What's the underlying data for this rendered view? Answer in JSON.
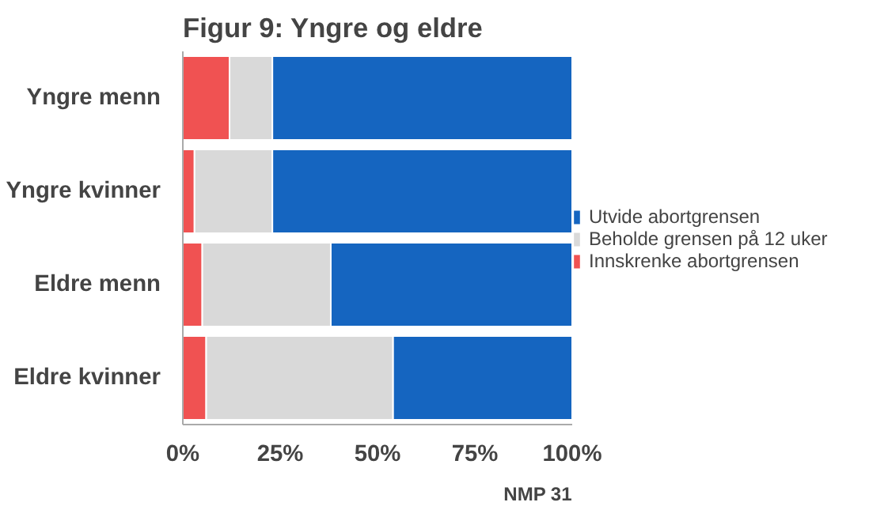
{
  "chart_data": {
    "type": "bar",
    "orientation": "horizontal",
    "stacked": true,
    "title": "Figur 9: Yngre og eldre",
    "categories": [
      "Yngre menn",
      "Yngre kvinner",
      "Eldre menn",
      "Eldre kvinner"
    ],
    "series": [
      {
        "name": "Innskrenke abortgrensen",
        "color": "#f05252",
        "values": [
          12,
          3,
          5,
          6
        ]
      },
      {
        "name": "Beholde grensen på 12 uker",
        "color": "#d9d9d9",
        "values": [
          11,
          20,
          33,
          48
        ]
      },
      {
        "name": "Utvide abortgrensen",
        "color": "#1565c0",
        "values": [
          77,
          77,
          62,
          46
        ]
      }
    ],
    "xlim": [
      0,
      100
    ],
    "xticks": [
      {
        "value": 0,
        "label": "0%"
      },
      {
        "value": 25,
        "label": "25%"
      },
      {
        "value": 50,
        "label": "50%"
      },
      {
        "value": 75,
        "label": "75%"
      },
      {
        "value": 100,
        "label": "100%"
      }
    ],
    "grid": false,
    "legend": "right",
    "annotations": [
      "NMP 31"
    ]
  }
}
